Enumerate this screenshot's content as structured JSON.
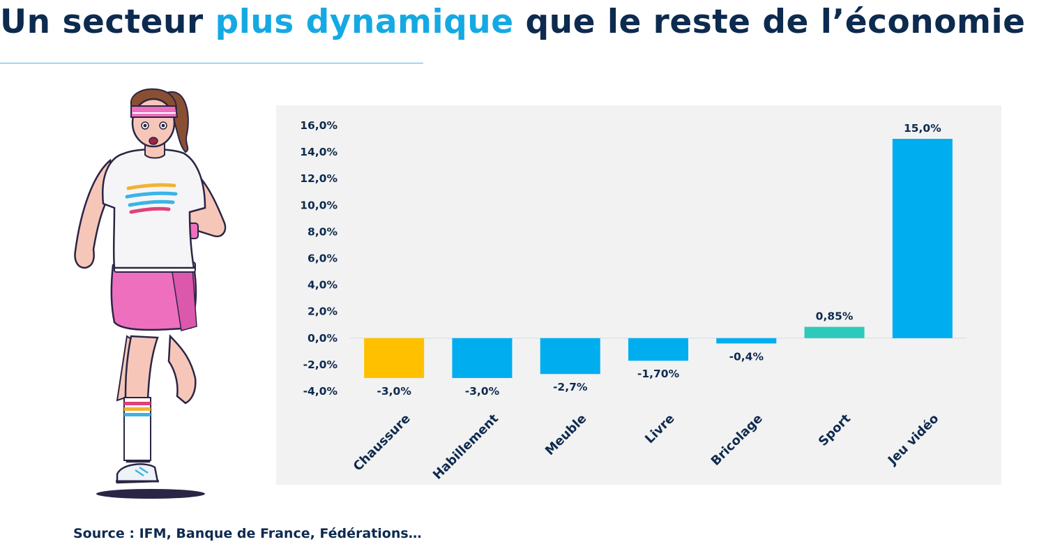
{
  "header": {
    "title_part1": "Un secteur ",
    "title_accent": "plus dynamique",
    "title_part2": " que le reste de l’économie"
  },
  "footer": {
    "source": "Source : IFM, Banque de France, Fédérations…"
  },
  "colors": {
    "title": "#0d2a4f",
    "accent": "#15a9e3",
    "panel": "#f2f2f2",
    "bar_default": "#00adef",
    "bar_chaussure": "#ffc000",
    "bar_sport": "#2dcabc"
  },
  "chart_data": {
    "type": "bar",
    "title": "",
    "xlabel": "",
    "ylabel": "",
    "categories": [
      "Chaussure",
      "Habillement",
      "Meuble",
      "Livre",
      "Bricolage",
      "Sport",
      "Jeu vidéo"
    ],
    "values": [
      -3.0,
      -3.0,
      -2.7,
      -1.7,
      -0.4,
      0.85,
      15.0
    ],
    "data_labels": [
      "-3,0%",
      "-3,0%",
      "-2,7%",
      "-1,70%",
      "-0,4%",
      "0,85%",
      "15,0%"
    ],
    "bar_colors": [
      "#ffc000",
      "#00adef",
      "#00adef",
      "#00adef",
      "#00adef",
      "#2dcabc",
      "#00adef"
    ],
    "ylim": [
      -4,
      16
    ],
    "yticks": [
      16,
      14,
      12,
      10,
      8,
      6,
      4,
      2,
      0,
      -2,
      -4
    ],
    "ytick_labels": [
      "16,0%",
      "14,0%",
      "12,0%",
      "10,0%",
      "8,0%",
      "6,0%",
      "4,0%",
      "2,0%",
      "0,0%",
      "-2,0%",
      "-4,0%"
    ],
    "grid": false,
    "legend": "none"
  }
}
